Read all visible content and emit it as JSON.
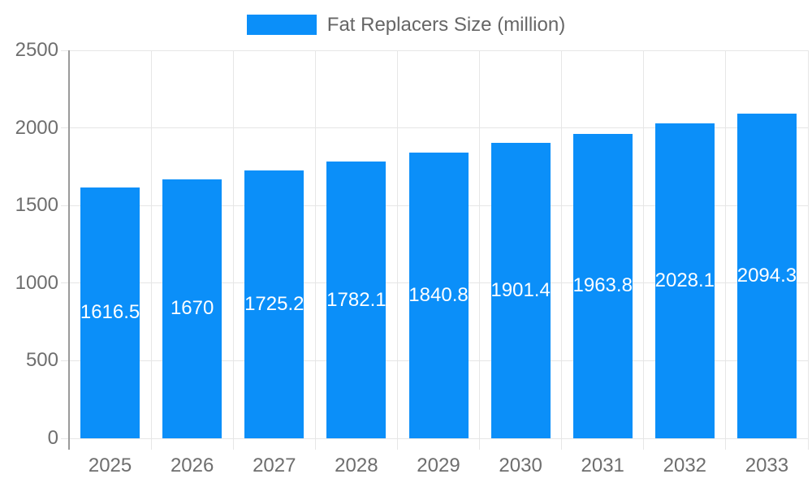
{
  "chart_data": {
    "type": "bar",
    "title": "",
    "legend": "Fat Replacers Size (million)",
    "legend_position": "top",
    "categories": [
      "2025",
      "2026",
      "2027",
      "2028",
      "2029",
      "2030",
      "2031",
      "2032",
      "2033"
    ],
    "series": [
      {
        "name": "Fat Replacers Size (million)",
        "values": [
          1616.5,
          1670,
          1725.2,
          1782.1,
          1840.8,
          1901.4,
          1963.8,
          2028.1,
          2094.3
        ]
      }
    ],
    "data_labels": [
      "1616.5",
      "1670",
      "1725.2",
      "1782.1",
      "1840.8",
      "1901.4",
      "1963.8",
      "2028.1",
      "2094.3"
    ],
    "xlabel": "",
    "ylabel": "",
    "ylim": [
      0,
      2500
    ],
    "yticks": [
      0,
      500,
      1000,
      1500,
      2000,
      2500
    ],
    "grid": true,
    "colors": {
      "bar": "#0b8ff9",
      "bar_value_label": "#ffffff",
      "axis_text": "#6e6e6e",
      "legend_text": "#666666",
      "gridline": "#e6e6e6",
      "axis_line": "#9a9a9a"
    }
  }
}
